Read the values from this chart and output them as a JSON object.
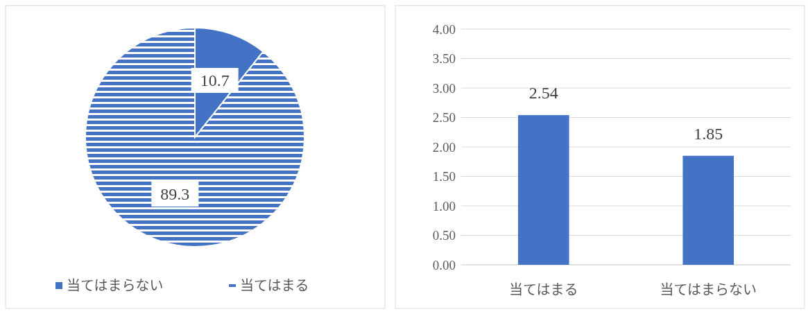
{
  "chart_data": [
    {
      "type": "pie",
      "categories": [
        "当てはまらない",
        "当てはまる"
      ],
      "values": [
        10.7,
        89.3
      ],
      "colors": [
        "#4472c4",
        "#4472c4"
      ],
      "data_labels": true,
      "legend": "bottom"
    },
    {
      "type": "bar",
      "categories": [
        "当てはまる",
        "当てはまらない"
      ],
      "values": [
        2.54,
        1.85
      ],
      "color": "#4472c4",
      "ylim": [
        0,
        4
      ],
      "yticks": [
        {
          "value": 0,
          "label": "0.00"
        },
        {
          "value": 0.5,
          "label": "0.50"
        },
        {
          "value": 1,
          "label": "1.00"
        },
        {
          "value": 1.5,
          "label": "1.50"
        },
        {
          "value": 2,
          "label": "2.00"
        },
        {
          "value": 2.5,
          "label": "2.50"
        },
        {
          "value": 3,
          "label": "3.00"
        },
        {
          "value": 3.5,
          "label": "3.50"
        },
        {
          "value": 4,
          "label": "4.00"
        }
      ],
      "grid": "y",
      "data_labels": true
    }
  ]
}
